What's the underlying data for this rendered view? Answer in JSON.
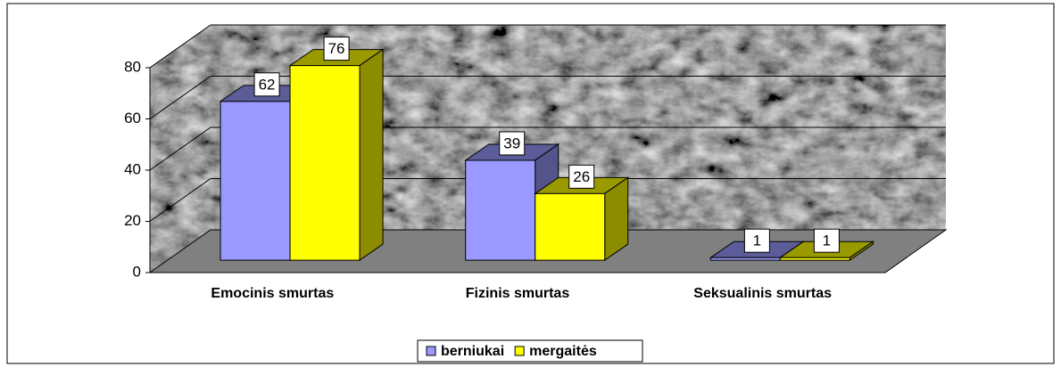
{
  "chart_data": {
    "type": "bar3d",
    "categories": [
      "Emocinis smurtas",
      "Fizinis smurtas",
      "Seksualinis smurtas"
    ],
    "series": [
      {
        "name": "berniukai",
        "color": "#9999ff",
        "values": [
          62,
          39,
          1
        ]
      },
      {
        "name": "mergaitės",
        "color": "#ffff00",
        "values": [
          76,
          26,
          1
        ]
      }
    ],
    "ylim": [
      0,
      80
    ],
    "yticks": [
      0,
      20,
      40,
      60,
      80
    ],
    "grid": true,
    "legend": "bottom"
  }
}
